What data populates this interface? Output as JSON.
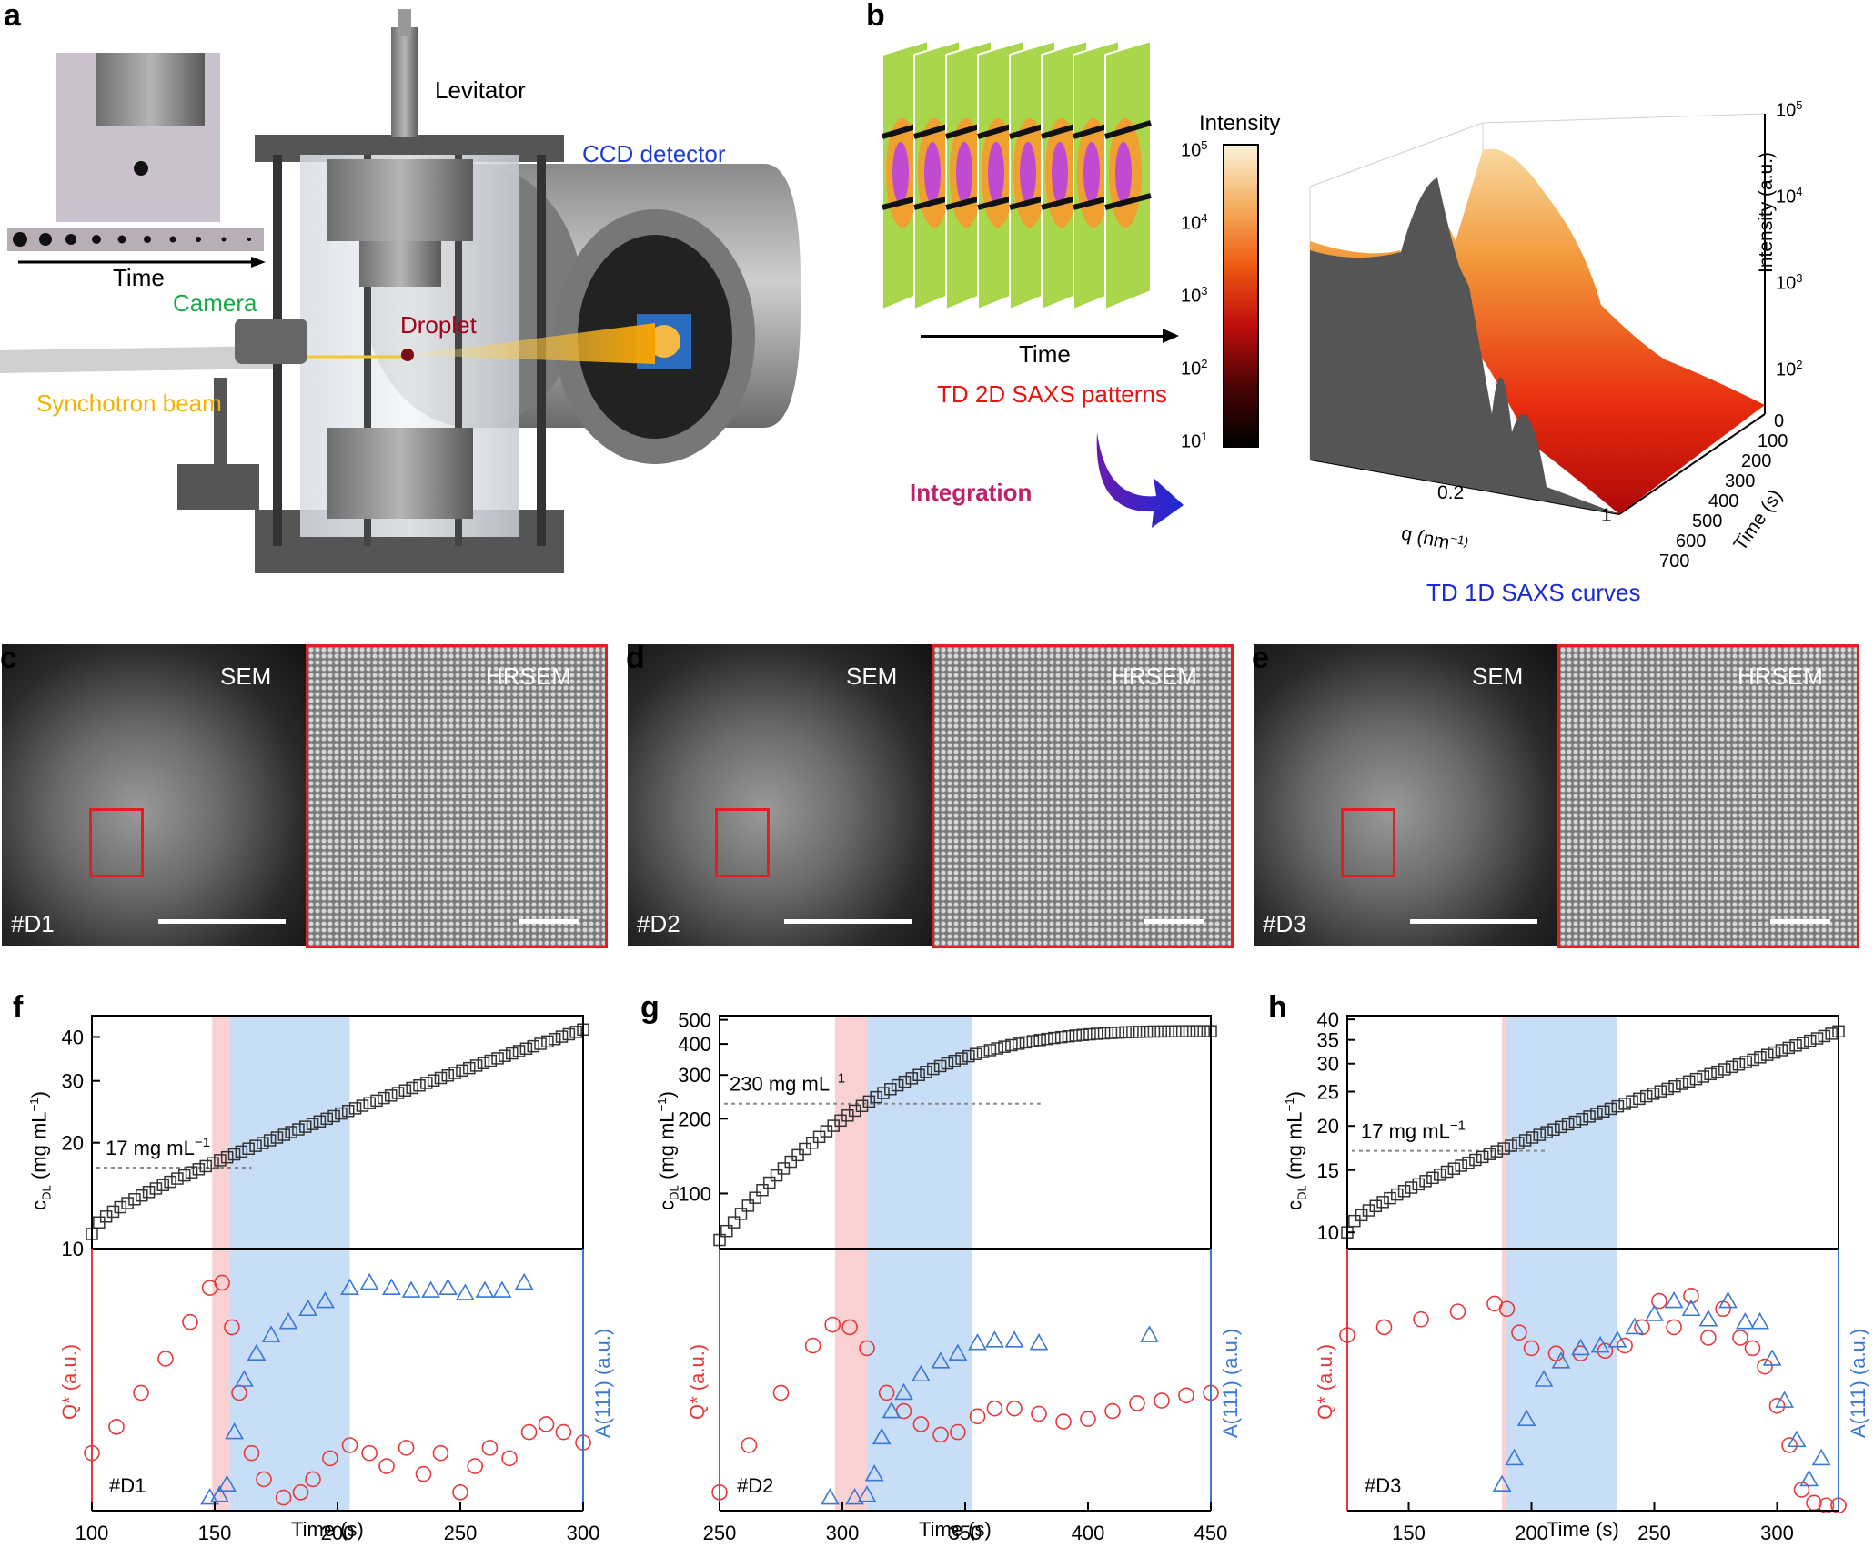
{
  "panel_a": {
    "letter": "a",
    "labels": {
      "levitator": "Levitator",
      "ccd": "CCD detector",
      "camera": "Camera",
      "droplet": "Droplet",
      "beam": "Synchotron beam",
      "time": "Time"
    },
    "colors": {
      "ccd": "#1a3bd6",
      "camera": "#1aa84a",
      "droplet": "#a4001a",
      "beam": "#f2b400"
    }
  },
  "panel_b": {
    "letter": "b",
    "time_label": "Time",
    "patterns_label": "TD 2D SAXS patterns",
    "integration_label": "Integration",
    "curves_label": "TD 1D SAXS curves",
    "colorbar": {
      "title": "Intensity",
      "ticks": [
        "10",
        "10",
        "10",
        "10",
        "10"
      ],
      "exps": [
        "5",
        "4",
        "3",
        "2",
        "1"
      ]
    },
    "axis": {
      "z_label": "Intensity (a.u.)",
      "z_ticks": [
        "10",
        "10",
        "10",
        "10"
      ],
      "z_exps": [
        "5",
        "4",
        "3",
        "2"
      ],
      "q_label": "q (nm",
      "q_exp": "−1",
      "q_ticks": [
        "0.2",
        "1"
      ],
      "time_label": "Time (s)",
      "time_ticks": [
        "0",
        "100",
        "200",
        "300",
        "400",
        "500",
        "600",
        "700"
      ]
    }
  },
  "sem_panels": [
    {
      "letter": "c",
      "sem": "SEM",
      "hrsem": "HRSEM",
      "sample": "#D1"
    },
    {
      "letter": "d",
      "sem": "SEM",
      "hrsem": "HRSEM",
      "sample": "#D2"
    },
    {
      "letter": "e",
      "sem": "SEM",
      "hrsem": "HRSEM",
      "sample": "#D3"
    }
  ],
  "chart_data": [
    {
      "panel": "f",
      "type": "scatter",
      "sample": "#D1",
      "xlabel": "Time (s)",
      "xlim": [
        100,
        300
      ],
      "xticks": [
        100,
        150,
        200,
        250,
        300
      ],
      "top": {
        "ylabel": "c_DL (mg mL−1)",
        "ylabel_main": "c",
        "ylabel_sub": "DL",
        "ylabel_unit": " (mg mL",
        "ylabel_exp": "−1",
        "yscale": "log",
        "ylim": [
          10,
          46
        ],
        "yticks": [
          10,
          20,
          30,
          40
        ],
        "annotation": "17 mg mL",
        "annotation_exp": "−1",
        "threshold": 17,
        "series": {
          "name": "c_DL",
          "x_start": 100,
          "x_end": 300,
          "y_start": 11,
          "y_end": 42
        }
      },
      "bottom": {
        "ylabel_left": "Q* (a.u.)",
        "ylabel_right": "A(111) (a.u.)",
        "Q_points": [
          [
            100,
            0.22
          ],
          [
            110,
            0.32
          ],
          [
            120,
            0.45
          ],
          [
            130,
            0.58
          ],
          [
            140,
            0.72
          ],
          [
            148,
            0.85
          ],
          [
            153,
            0.87
          ],
          [
            157,
            0.7
          ],
          [
            160,
            0.45
          ],
          [
            165,
            0.22
          ],
          [
            170,
            0.12
          ],
          [
            178,
            0.05
          ],
          [
            185,
            0.07
          ],
          [
            190,
            0.12
          ],
          [
            197,
            0.2
          ],
          [
            205,
            0.25
          ],
          [
            213,
            0.22
          ],
          [
            220,
            0.17
          ],
          [
            228,
            0.24
          ],
          [
            235,
            0.14
          ],
          [
            242,
            0.22
          ],
          [
            250,
            0.07
          ],
          [
            256,
            0.17
          ],
          [
            262,
            0.24
          ],
          [
            270,
            0.2
          ],
          [
            278,
            0.3
          ],
          [
            285,
            0.33
          ],
          [
            292,
            0.3
          ],
          [
            300,
            0.26
          ]
        ],
        "A_points": [
          [
            148,
            0.05
          ],
          [
            152,
            0.06
          ],
          [
            155,
            0.1
          ],
          [
            158,
            0.3
          ],
          [
            162,
            0.5
          ],
          [
            167,
            0.6
          ],
          [
            173,
            0.67
          ],
          [
            180,
            0.72
          ],
          [
            188,
            0.77
          ],
          [
            195,
            0.8
          ],
          [
            205,
            0.85
          ],
          [
            213,
            0.87
          ],
          [
            222,
            0.85
          ],
          [
            230,
            0.84
          ],
          [
            238,
            0.84
          ],
          [
            245,
            0.85
          ],
          [
            252,
            0.83
          ],
          [
            260,
            0.84
          ],
          [
            267,
            0.84
          ],
          [
            276,
            0.87
          ]
        ],
        "shade_red": [
          149,
          156
        ],
        "shade_blue": [
          156,
          205
        ]
      }
    },
    {
      "panel": "g",
      "type": "scatter",
      "sample": "#D2",
      "xlabel": "Time (s)",
      "xlim": [
        250,
        450
      ],
      "xticks": [
        250,
        300,
        350,
        400,
        450
      ],
      "top": {
        "ylabel": "c_DL (mg mL−1)",
        "ylabel_main": "c",
        "ylabel_sub": "DL",
        "ylabel_unit": " (mg mL",
        "ylabel_exp": "−1",
        "yscale": "log",
        "ylim": [
          60,
          520
        ],
        "yticks": [
          100,
          200,
          300,
          400,
          500
        ],
        "annotation": "230 mg mL",
        "annotation_exp": "−1",
        "threshold": 230,
        "series": {
          "name": "c_DL",
          "x_start": 250,
          "x_end": 450,
          "y_start": 65,
          "y_end": 450
        }
      },
      "bottom": {
        "ylabel_left": "Q* (a.u.)",
        "ylabel_right": "A(111) (a.u.)",
        "Q_points": [
          [
            250,
            0.07
          ],
          [
            262,
            0.25
          ],
          [
            275,
            0.45
          ],
          [
            288,
            0.63
          ],
          [
            296,
            0.71
          ],
          [
            303,
            0.7
          ],
          [
            310,
            0.62
          ],
          [
            318,
            0.45
          ],
          [
            325,
            0.38
          ],
          [
            332,
            0.33
          ],
          [
            340,
            0.29
          ],
          [
            347,
            0.3
          ],
          [
            355,
            0.36
          ],
          [
            362,
            0.39
          ],
          [
            370,
            0.39
          ],
          [
            380,
            0.37
          ],
          [
            390,
            0.34
          ],
          [
            400,
            0.35
          ],
          [
            410,
            0.38
          ],
          [
            420,
            0.41
          ],
          [
            430,
            0.42
          ],
          [
            440,
            0.44
          ],
          [
            450,
            0.45
          ]
        ],
        "A_points": [
          [
            295,
            0.05
          ],
          [
            305,
            0.05
          ],
          [
            310,
            0.06
          ],
          [
            313,
            0.14
          ],
          [
            316,
            0.28
          ],
          [
            320,
            0.38
          ],
          [
            325,
            0.45
          ],
          [
            332,
            0.52
          ],
          [
            340,
            0.57
          ],
          [
            347,
            0.6
          ],
          [
            355,
            0.64
          ],
          [
            362,
            0.65
          ],
          [
            370,
            0.65
          ],
          [
            380,
            0.64
          ],
          [
            425,
            0.67
          ]
        ],
        "shade_red": [
          297,
          310
        ],
        "shade_blue": [
          310,
          353
        ]
      }
    },
    {
      "panel": "h",
      "type": "scatter",
      "sample": "#D3",
      "xlabel": "Time (s)",
      "xlim": [
        125,
        325
      ],
      "xticks": [
        150,
        200,
        250,
        300
      ],
      "top": {
        "ylabel": "c_DL (mg mL−1)",
        "ylabel_main": "c",
        "ylabel_sub": "DL",
        "ylabel_unit": " (mg mL",
        "ylabel_exp": "−1",
        "yscale": "log",
        "ylim": [
          9,
          41
        ],
        "yticks": [
          10,
          15,
          20,
          25,
          30,
          35,
          40
        ],
        "annotation": "17 mg mL",
        "annotation_exp": "−1",
        "threshold": 17,
        "series": {
          "name": "c_DL",
          "x_start": 125,
          "x_end": 325,
          "y_start": 10,
          "y_end": 37
        }
      },
      "bottom": {
        "ylabel_left": "Q* (a.u.)",
        "ylabel_right": "A(111) (a.u.)",
        "Q_points": [
          [
            125,
            0.67
          ],
          [
            140,
            0.7
          ],
          [
            155,
            0.73
          ],
          [
            170,
            0.76
          ],
          [
            185,
            0.79
          ],
          [
            190,
            0.77
          ],
          [
            195,
            0.68
          ],
          [
            200,
            0.62
          ],
          [
            210,
            0.6
          ],
          [
            220,
            0.6
          ],
          [
            230,
            0.61
          ],
          [
            238,
            0.63
          ],
          [
            245,
            0.7
          ],
          [
            252,
            0.8
          ],
          [
            258,
            0.7
          ],
          [
            265,
            0.82
          ],
          [
            272,
            0.66
          ],
          [
            278,
            0.77
          ],
          [
            285,
            0.66
          ],
          [
            290,
            0.62
          ],
          [
            295,
            0.55
          ],
          [
            300,
            0.4
          ],
          [
            305,
            0.25
          ],
          [
            310,
            0.08
          ],
          [
            315,
            0.03
          ],
          [
            320,
            0.02
          ],
          [
            325,
            0.02
          ]
        ],
        "A_points": [
          [
            188,
            0.1
          ],
          [
            193,
            0.2
          ],
          [
            198,
            0.35
          ],
          [
            205,
            0.5
          ],
          [
            212,
            0.57
          ],
          [
            220,
            0.62
          ],
          [
            228,
            0.63
          ],
          [
            235,
            0.65
          ],
          [
            242,
            0.7
          ],
          [
            250,
            0.75
          ],
          [
            258,
            0.8
          ],
          [
            265,
            0.77
          ],
          [
            272,
            0.73
          ],
          [
            280,
            0.8
          ],
          [
            287,
            0.72
          ],
          [
            293,
            0.72
          ],
          [
            298,
            0.58
          ],
          [
            303,
            0.42
          ],
          [
            308,
            0.27
          ],
          [
            313,
            0.12
          ],
          [
            318,
            0.2
          ]
        ],
        "shade_red": [
          188,
          190
        ],
        "shade_blue": [
          190,
          235
        ]
      }
    }
  ]
}
